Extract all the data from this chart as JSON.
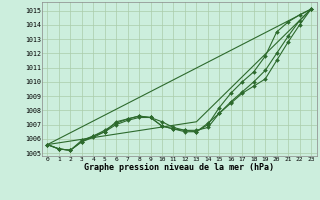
{
  "title": "Graphe pression niveau de la mer (hPa)",
  "background_color": "#cceedd",
  "grid_color": "#aaccaa",
  "line_color": "#2d6a2d",
  "xlim": [
    -0.5,
    23.5
  ],
  "ylim": [
    1004.8,
    1015.6
  ],
  "yticks": [
    1005,
    1006,
    1007,
    1008,
    1009,
    1010,
    1011,
    1012,
    1013,
    1014,
    1015
  ],
  "xticks": [
    0,
    1,
    2,
    3,
    4,
    5,
    6,
    7,
    8,
    9,
    10,
    11,
    12,
    13,
    14,
    15,
    16,
    17,
    18,
    19,
    20,
    21,
    22,
    23
  ],
  "series_with_markers": [
    [
      1005.6,
      1005.3,
      1005.2,
      1005.8,
      1006.1,
      1006.5,
      1007.0,
      1007.3,
      1007.5,
      1007.5,
      1006.9,
      1006.7,
      1006.6,
      1006.6,
      1006.8,
      1007.8,
      1008.6,
      1009.3,
      1010.0,
      1010.8,
      1012.0,
      1013.2,
      1014.3,
      1015.1
    ],
    [
      1005.6,
      1005.3,
      1005.2,
      1005.9,
      1006.2,
      1006.6,
      1007.1,
      1007.4,
      1007.6,
      1007.5,
      1006.9,
      1006.7,
      1006.5,
      1006.5,
      1007.0,
      1008.2,
      1009.2,
      1010.0,
      1010.7,
      1011.8,
      1013.5,
      1014.2,
      1014.7,
      1015.1
    ],
    [
      1005.6,
      1005.3,
      1005.2,
      1005.8,
      1006.2,
      1006.5,
      1007.2,
      1007.4,
      1007.6,
      1007.5,
      1007.2,
      1006.8,
      1006.6,
      1006.5,
      1007.1,
      1007.8,
      1008.5,
      1009.2,
      1009.7,
      1010.2,
      1011.5,
      1012.8,
      1014.0,
      1015.1
    ]
  ],
  "straight_lines": [
    [
      [
        0,
        23
      ],
      [
        1005.6,
        1015.1
      ]
    ],
    [
      [
        0,
        13,
        23
      ],
      [
        1005.6,
        1007.2,
        1015.1
      ]
    ]
  ]
}
